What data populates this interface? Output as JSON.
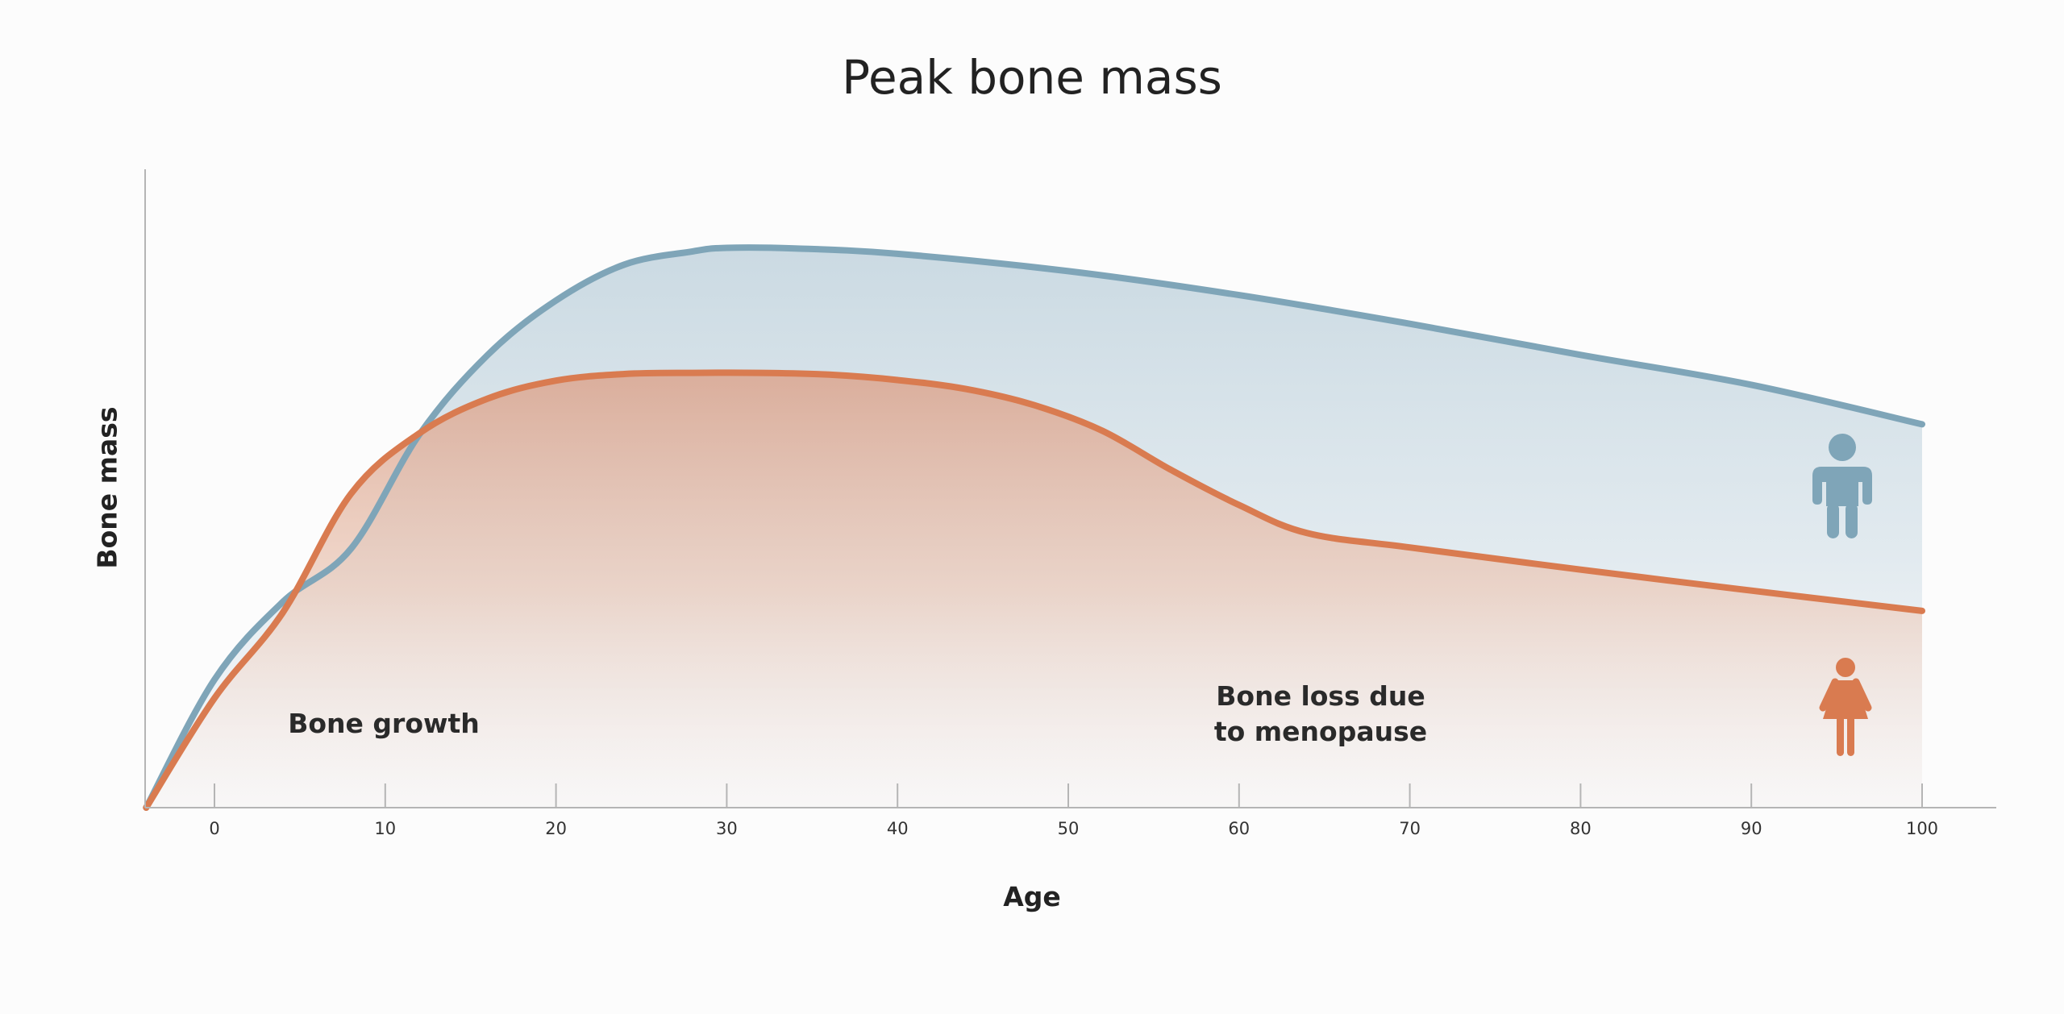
{
  "chart_data": {
    "type": "area",
    "title": "Peak bone mass",
    "xlabel": "Age",
    "ylabel": "Bone mass",
    "xlim": [
      -4,
      100
    ],
    "ylim": [
      0,
      100
    ],
    "x_ticks": [
      0,
      10,
      20,
      30,
      40,
      50,
      60,
      70,
      80,
      90,
      100
    ],
    "y_ticks_shown": false,
    "grid": false,
    "legend": "none",
    "series": [
      {
        "color": "#7fa5b8",
        "icon": "male-figure-icon",
        "x": [
          -4,
          0,
          4,
          8,
          12,
          16,
          20,
          24,
          28,
          30,
          34,
          40,
          50,
          60,
          70,
          80,
          90,
          100
        ],
        "y": [
          0,
          21.4,
          34.4,
          43.3,
          62.4,
          75.7,
          84.8,
          90.8,
          93.0,
          93.6,
          93.5,
          92.6,
          89.7,
          85.7,
          80.9,
          75.7,
          70.7,
          64.1
        ]
      },
      {
        "color": "#d97b50",
        "icon": "female-figure-icon",
        "x": [
          -4,
          0,
          4,
          8,
          12,
          16,
          20,
          24,
          28,
          32,
          36,
          40,
          44,
          48,
          52,
          56,
          60,
          64,
          70,
          80,
          90,
          100
        ],
        "y": [
          0,
          18.3,
          32.6,
          52.5,
          62.6,
          68.4,
          71.4,
          72.5,
          72.7,
          72.7,
          72.4,
          71.5,
          70.0,
          67.3,
          63.0,
          56.5,
          50.6,
          45.9,
          43.5,
          39.8,
          36.3,
          32.9
        ]
      }
    ],
    "annotations": [
      {
        "text": "Bone growth",
        "x": 10,
        "y": 13
      },
      {
        "text": "Bone loss due\nto menopause",
        "x": 64,
        "y": 15
      }
    ]
  }
}
